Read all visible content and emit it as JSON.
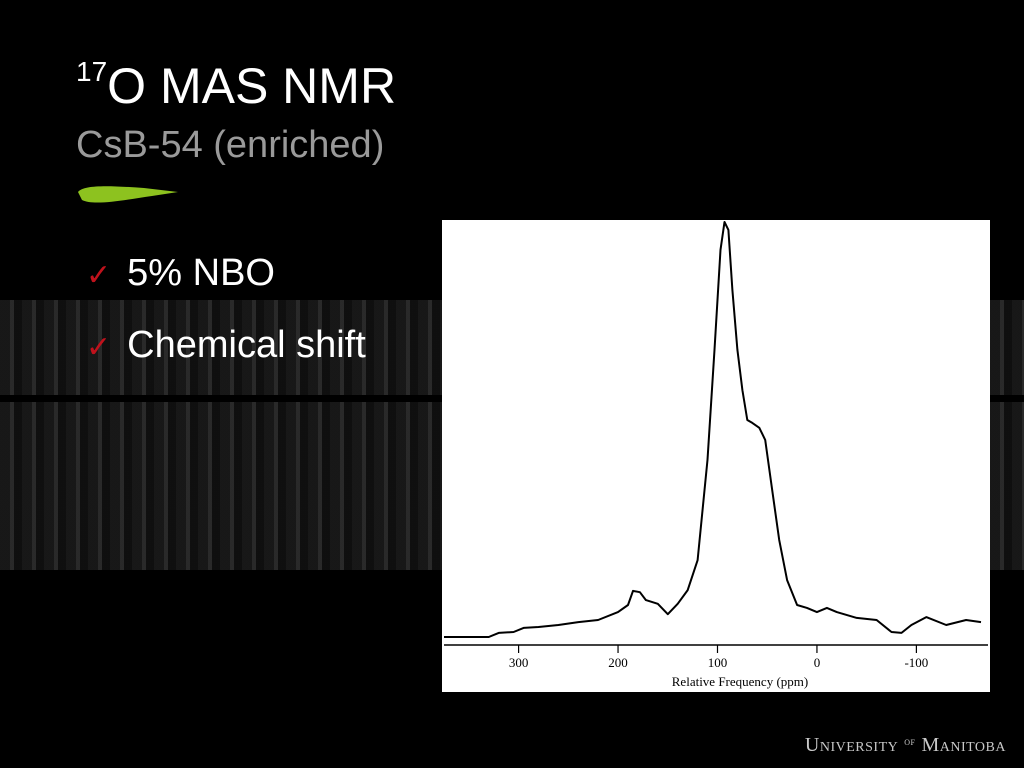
{
  "slide": {
    "title_sup": "17",
    "title": "O MAS NMR",
    "subtitle": "CsB-54 (enriched)",
    "bullets": [
      "5% NBO",
      "Chemical shift"
    ],
    "footer": [
      "University",
      "of",
      "Manitoba"
    ]
  },
  "chart_data": {
    "type": "line",
    "x_label": "Relative Frequency (ppm)",
    "x": [
      375,
      330,
      320,
      305,
      295,
      280,
      260,
      240,
      220,
      200,
      190,
      185,
      178,
      172,
      160,
      150,
      140,
      130,
      120,
      110,
      103,
      97,
      93,
      89,
      85,
      80,
      75,
      70,
      65,
      58,
      52,
      45,
      38,
      30,
      20,
      10,
      0,
      -10,
      -20,
      -40,
      -60,
      -75,
      -85,
      -95,
      -110,
      -130,
      -150,
      -165
    ],
    "series": [
      {
        "color": "#000000",
        "values": [
          0,
          0,
          1,
          1.2,
          2.2,
          2.4,
          2.9,
          3.6,
          4.1,
          6,
          7.7,
          11.1,
          10.8,
          8.9,
          8,
          5.5,
          8,
          11.3,
          18.5,
          42.7,
          69.2,
          93.3,
          100,
          98.1,
          83.6,
          69.2,
          59.5,
          52.3,
          51.6,
          50.4,
          47.5,
          35.4,
          23.4,
          13.7,
          7.7,
          7,
          6,
          7,
          6,
          4.6,
          4.1,
          1.2,
          1,
          2.9,
          4.8,
          2.9,
          4.1,
          3.6
        ]
      }
    ],
    "xlim": [
      375,
      -172
    ],
    "xticks": [
      300,
      200,
      100,
      0,
      -100
    ],
    "ylim": [
      0,
      100
    ]
  }
}
